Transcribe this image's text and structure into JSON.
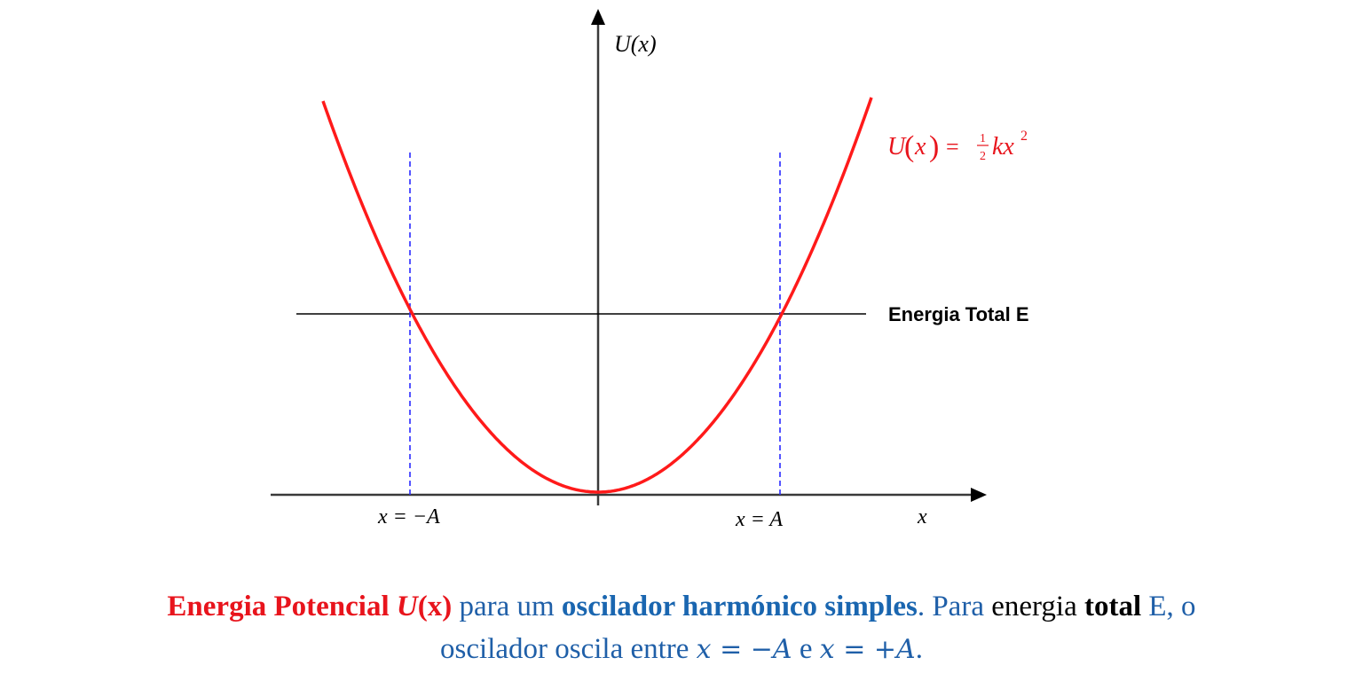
{
  "diagram": {
    "y_axis_label": "U(x)",
    "x_axis_label": "x",
    "curve_formula": {
      "lhs": "U",
      "arg": "x",
      "eq": "=",
      "frac_num": "1",
      "frac_den": "2",
      "rhs": "kx",
      "exp": "2"
    },
    "energy_label": "Energia Total E",
    "left_turning_point": "x = −A",
    "right_turning_point": "x = A",
    "colors": {
      "curve": "#ff1a1a",
      "turning_lines": "#2a2aff",
      "axes": "#3a3a3a",
      "energy_line": "#000000"
    }
  },
  "caption": {
    "part1": "Energia Potencial ",
    "part2": "U",
    "part3": "(x)",
    "part4": " para um ",
    "part5": "oscilador harmónico simples",
    "part6": ". Para ",
    "part7": "energia ",
    "part8": "total",
    "part9": " E, o",
    "part10": "oscilador oscila entre ",
    "part11": "x = −A",
    "part12": " e ",
    "part13": "x = +A",
    "part14": "."
  }
}
